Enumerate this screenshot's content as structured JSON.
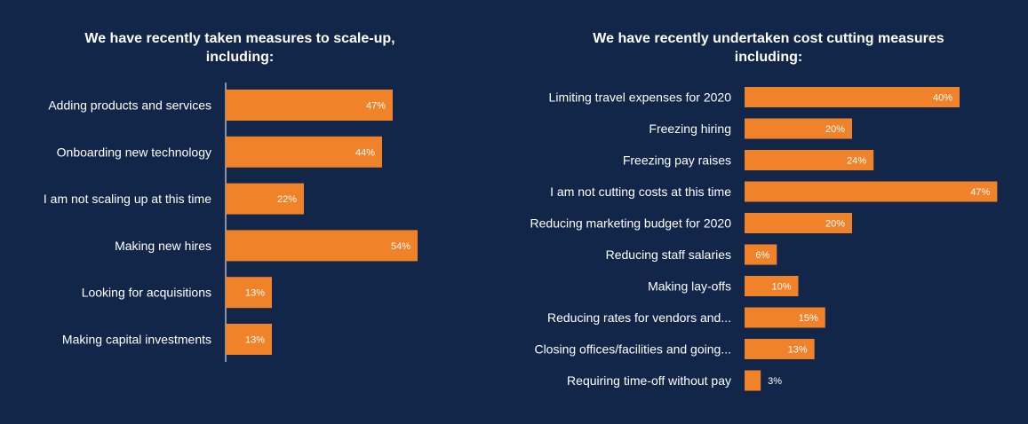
{
  "chart_data": [
    {
      "type": "bar",
      "orientation": "horizontal",
      "title": "We have recently taken measures to scale-up,\nincluding:",
      "categories": [
        "Adding products and services",
        "Onboarding new technology",
        "I am not scaling up at this time",
        "Making new hires",
        "Looking for acquisitions",
        "Making capital investments"
      ],
      "values": [
        47,
        44,
        22,
        54,
        13,
        13
      ],
      "value_labels": [
        "47%",
        "44%",
        "22%",
        "54%",
        "13%",
        "13%"
      ],
      "unit": "%",
      "bar_color": "#f0822a",
      "grid": false,
      "legend": "none"
    },
    {
      "type": "bar",
      "orientation": "horizontal",
      "title": "We have recently undertaken cost cutting measures\nincluding:",
      "categories": [
        "Limiting travel expenses for 2020",
        "Freezing hiring",
        "Freezing pay raises",
        "I am not cutting costs at this time",
        "Reducing marketing budget for 2020",
        "Reducing staff salaries",
        "Making lay-offs",
        "Reducing rates for vendors and...",
        "Closing offices/facilities and going...",
        "Requiring time-off without pay"
      ],
      "values": [
        40,
        20,
        24,
        47,
        20,
        6,
        10,
        15,
        13,
        3
      ],
      "value_labels": [
        "40%",
        "20%",
        "24%",
        "47%",
        "20%",
        "6%",
        "10%",
        "15%",
        "13%",
        "3%"
      ],
      "unit": "%",
      "bar_color": "#f0822a",
      "grid": false,
      "legend": "none"
    }
  ],
  "colors": {
    "background": "#12264a",
    "bar": "#f0822a",
    "axis": "#ffffff",
    "text": "#ffffff"
  }
}
